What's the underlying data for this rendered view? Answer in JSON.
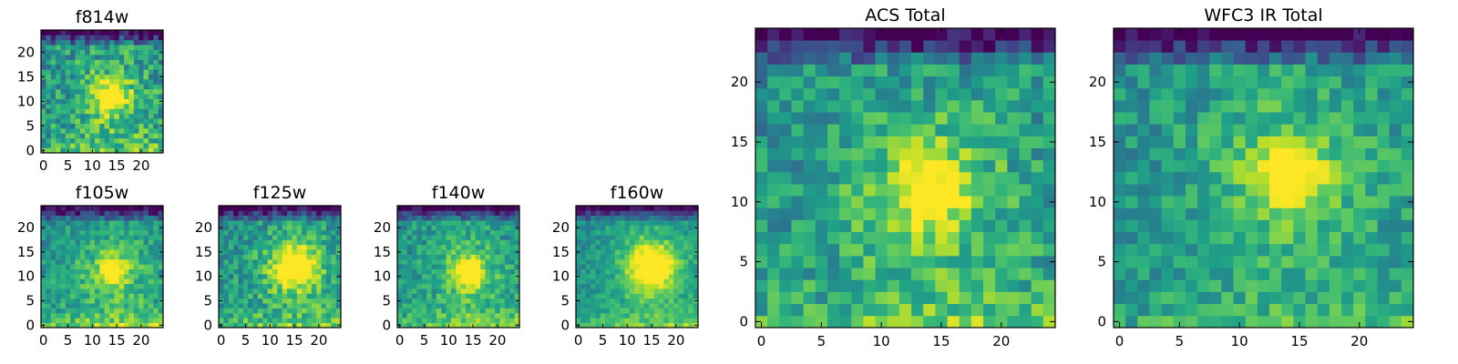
{
  "chart_data": [
    {
      "type": "heatmap",
      "title": "f814w",
      "xticks": [
        0,
        5,
        10,
        15,
        20
      ],
      "yticks": [
        0,
        5,
        10,
        15,
        20
      ],
      "xlim": [
        -0.5,
        24.5
      ],
      "ylim": [
        -0.5,
        24.5
      ],
      "grid_size": 25,
      "colormap": "viridis",
      "peak": [
        14,
        11
      ],
      "peak_radius": 2.2,
      "noise": 0.42,
      "bottom_glow": 0.6
    },
    {
      "type": "heatmap",
      "title": "f105w",
      "xticks": [
        0,
        5,
        10,
        15,
        20
      ],
      "yticks": [
        0,
        5,
        10,
        15,
        20
      ],
      "xlim": [
        -0.5,
        24.5
      ],
      "ylim": [
        -0.5,
        24.5
      ],
      "grid_size": 25,
      "colormap": "viridis",
      "peak": [
        14,
        11
      ],
      "peak_radius": 1.8,
      "noise": 0.3,
      "bottom_glow": 0.75
    },
    {
      "type": "heatmap",
      "title": "f125w",
      "xticks": [
        0,
        5,
        10,
        15,
        20
      ],
      "yticks": [
        0,
        5,
        10,
        15,
        20
      ],
      "xlim": [
        -0.5,
        24.5
      ],
      "ylim": [
        -0.5,
        24.5
      ],
      "grid_size": 25,
      "colormap": "viridis",
      "peak": [
        15,
        12
      ],
      "peak_radius": 3.0,
      "noise": 0.34,
      "bottom_glow": 0.65
    },
    {
      "type": "heatmap",
      "title": "f140w",
      "xticks": [
        0,
        5,
        10,
        15,
        20
      ],
      "yticks": [
        0,
        5,
        10,
        15,
        20
      ],
      "xlim": [
        -0.5,
        24.5
      ],
      "ylim": [
        -0.5,
        24.5
      ],
      "grid_size": 25,
      "colormap": "viridis",
      "peak": [
        14,
        11
      ],
      "peak_radius": 2.0,
      "noise": 0.3,
      "bottom_glow": 0.7
    },
    {
      "type": "heatmap",
      "title": "f160w",
      "xticks": [
        0,
        5,
        10,
        15,
        20
      ],
      "yticks": [
        0,
        5,
        10,
        15,
        20
      ],
      "xlim": [
        -0.5,
        24.5
      ],
      "ylim": [
        -0.5,
        24.5
      ],
      "grid_size": 25,
      "colormap": "viridis",
      "peak": [
        15,
        12
      ],
      "peak_radius": 3.2,
      "noise": 0.22,
      "bottom_glow": 0.7
    },
    {
      "type": "heatmap",
      "title": "ACS Total",
      "xticks": [
        0,
        5,
        10,
        15,
        20
      ],
      "yticks": [
        0,
        5,
        10,
        15,
        20
      ],
      "xlim": [
        -0.5,
        24.5
      ],
      "ylim": [
        -0.5,
        24.5
      ],
      "grid_size": 25,
      "colormap": "viridis",
      "peak": [
        14,
        11
      ],
      "peak_radius": 2.0,
      "noise": 0.36,
      "bottom_glow": 0.55
    },
    {
      "type": "heatmap",
      "title": "WFC3 IR Total",
      "xticks": [
        0,
        5,
        10,
        15,
        20
      ],
      "yticks": [
        0,
        5,
        10,
        15,
        20
      ],
      "xlim": [
        -0.5,
        24.5
      ],
      "ylim": [
        -0.5,
        24.5
      ],
      "grid_size": 25,
      "colormap": "viridis",
      "peak": [
        14,
        12
      ],
      "peak_radius": 1.8,
      "noise": 0.3,
      "bottom_glow": 0.4
    }
  ]
}
